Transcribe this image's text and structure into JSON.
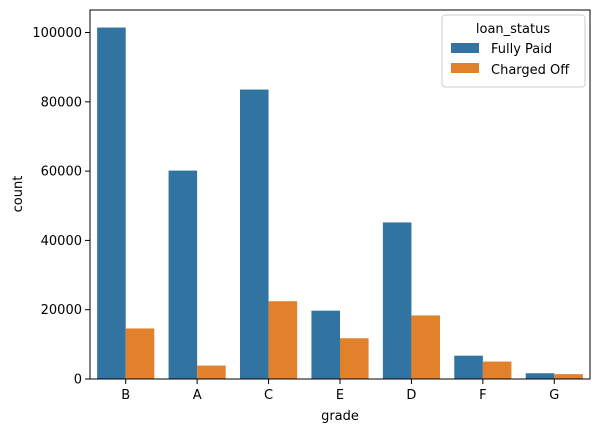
{
  "chart_data": {
    "type": "bar",
    "title": "",
    "xlabel": "grade",
    "ylabel": "count",
    "categories": [
      "B",
      "A",
      "C",
      "E",
      "D",
      "F",
      "G"
    ],
    "series": [
      {
        "name": "Fully Paid",
        "color": "#3274a1",
        "values": [
          101431,
          60151,
          83538,
          19723,
          45186,
          6735,
          1657
        ]
      },
      {
        "name": "Charged Off",
        "color": "#e1812c",
        "values": [
          14587,
          3874,
          22449,
          11765,
          18338,
          5037,
          1397
        ]
      }
    ],
    "ylim": [
      0,
      106500
    ],
    "yticks": [
      0,
      20000,
      40000,
      60000,
      80000,
      100000
    ],
    "legend": {
      "title": "loan_status",
      "placement": "top-right"
    },
    "grid": false
  }
}
